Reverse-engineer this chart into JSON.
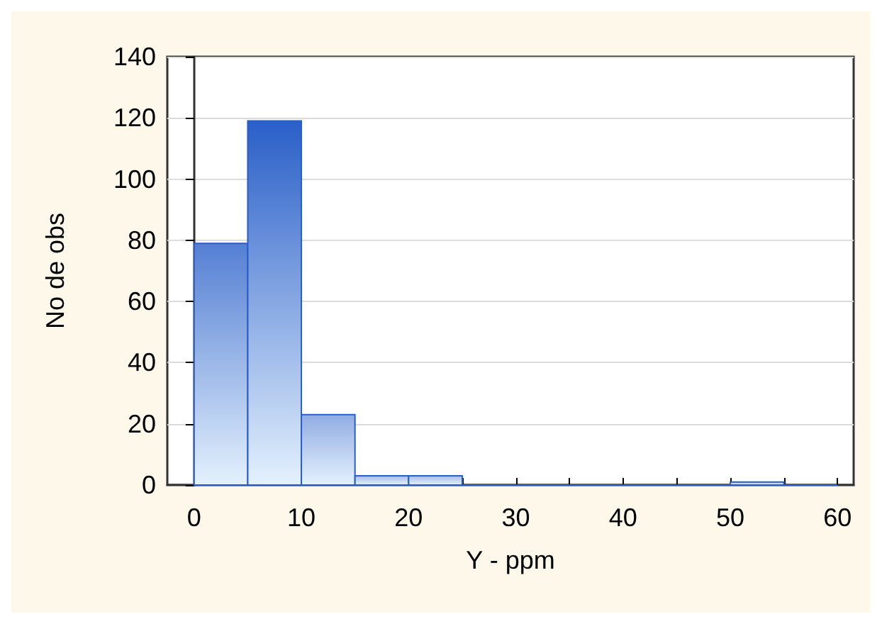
{
  "chart_data": {
    "type": "histogram",
    "xlabel": "Y - ppm",
    "ylabel": "No de obs",
    "color": "#2a5fc8",
    "bins": [
      0,
      5,
      10,
      15,
      20,
      25,
      30,
      35,
      40,
      45,
      50,
      55,
      60
    ],
    "values": [
      79,
      119,
      23,
      3,
      3,
      0,
      0,
      0,
      0,
      0,
      1,
      0
    ],
    "xlim": [
      -2.5,
      61.5
    ],
    "xticks": [
      0,
      {
        "value": 5,
        "label": null
      },
      10,
      {
        "value": 15,
        "label": null
      },
      20,
      {
        "value": 25,
        "label": null
      },
      30,
      {
        "value": 35,
        "label": null
      },
      40,
      {
        "value": 45,
        "label": null
      },
      50,
      {
        "value": 55,
        "label": null
      },
      60
    ],
    "ylim": [
      0,
      140
    ],
    "yticks": [
      0,
      20,
      40,
      60,
      80,
      100,
      120,
      140
    ],
    "grid": "y"
  }
}
